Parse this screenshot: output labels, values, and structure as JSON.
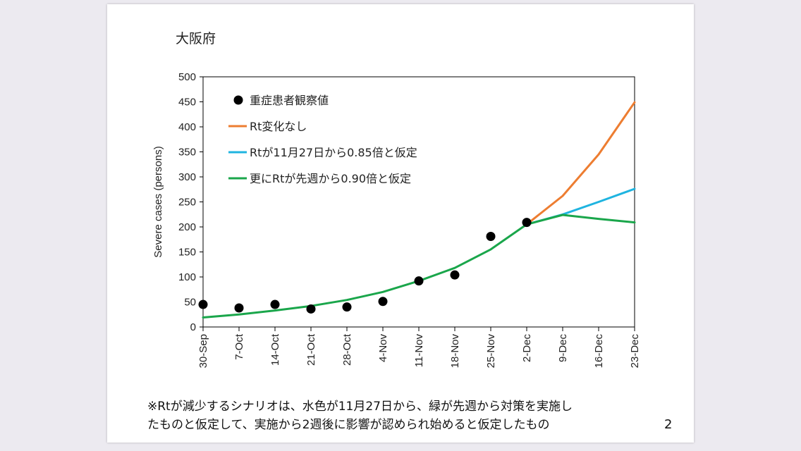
{
  "slide": {
    "prefecture_title": "大阪府",
    "footnote_line1": "※Rtが減少するシナリオは、水色が11月27日から、緑が先週から対策を実施し",
    "footnote_line2": "たものと仮定して、実施から2週後に影響が認められ始めると仮定したもの",
    "page_number": "2"
  },
  "chart_data": {
    "type": "line",
    "title": "",
    "xlabel": "",
    "ylabel": "Severe cases (persons)",
    "categories": [
      "30-Sep",
      "7-Oct",
      "14-Oct",
      "21-Oct",
      "28-Oct",
      "4-Nov",
      "11-Nov",
      "18-Nov",
      "25-Nov",
      "2-Dec",
      "9-Dec",
      "16-Dec",
      "23-Dec"
    ],
    "ylim": [
      0,
      500
    ],
    "yticks": [
      0,
      50,
      100,
      150,
      200,
      250,
      300,
      350,
      400,
      450,
      500
    ],
    "grid": false,
    "legend_position": "top-left",
    "series": [
      {
        "name": "重症患者観察値",
        "kind": "scatter",
        "color": "#000000",
        "values": [
          45,
          38,
          45,
          36,
          40,
          51,
          92,
          104,
          181,
          209,
          null,
          null,
          null
        ]
      },
      {
        "name": "Rt変化なし",
        "kind": "line",
        "color": "#ed7d31",
        "values": [
          null,
          null,
          null,
          null,
          null,
          null,
          null,
          null,
          null,
          205,
          262,
          345,
          449
        ]
      },
      {
        "name": "Rtが11月27日から0.85倍と仮定",
        "kind": "line",
        "color": "#1fb4e0",
        "values": [
          null,
          null,
          null,
          null,
          null,
          null,
          null,
          null,
          null,
          205,
          225,
          250,
          276
        ]
      },
      {
        "name": "更にRtが先週から0.90倍と仮定",
        "kind": "line",
        "color": "#1aa64b",
        "values": [
          19,
          25,
          33,
          42,
          54,
          70,
          92,
          118,
          155,
          205,
          224,
          216,
          209
        ]
      }
    ]
  }
}
